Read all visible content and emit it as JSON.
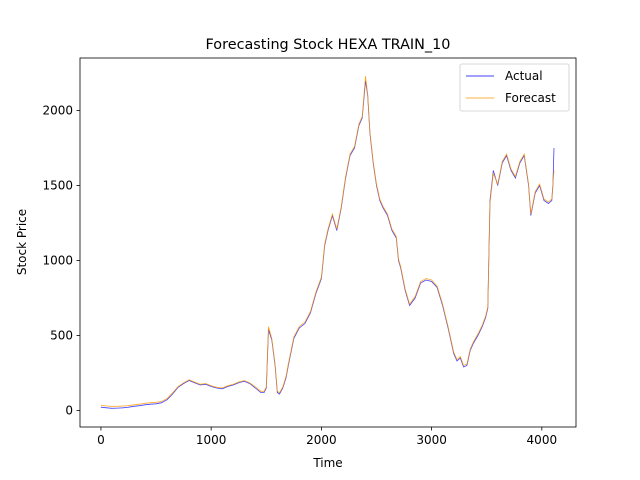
{
  "chart_data": {
    "type": "line",
    "title": "Forecasting Stock HEXA TRAIN_10",
    "xlabel": "Time",
    "ylabel": "Stock Price",
    "xlim": [
      -190,
      4310
    ],
    "ylim": [
      -110,
      2350
    ],
    "xticks": [
      0,
      1000,
      2000,
      3000,
      4000
    ],
    "yticks": [
      0,
      500,
      1000,
      1500,
      2000
    ],
    "grid": false,
    "legend_position": "top-right",
    "series": [
      {
        "name": "Actual",
        "color": "#0000ff",
        "x": [
          0,
          50,
          100,
          150,
          200,
          250,
          300,
          350,
          400,
          450,
          500,
          550,
          600,
          650,
          700,
          750,
          800,
          850,
          900,
          950,
          1000,
          1050,
          1100,
          1150,
          1200,
          1250,
          1300,
          1350,
          1400,
          1450,
          1480,
          1500,
          1520,
          1550,
          1580,
          1600,
          1620,
          1650,
          1680,
          1700,
          1750,
          1800,
          1850,
          1900,
          1950,
          2000,
          2030,
          2060,
          2100,
          2140,
          2180,
          2220,
          2260,
          2300,
          2340,
          2370,
          2400,
          2420,
          2440,
          2470,
          2500,
          2530,
          2560,
          2600,
          2640,
          2680,
          2700,
          2720,
          2760,
          2800,
          2850,
          2900,
          2950,
          3000,
          3050,
          3100,
          3150,
          3200,
          3230,
          3260,
          3290,
          3320,
          3350,
          3380,
          3420,
          3460,
          3490,
          3510,
          3530,
          3560,
          3600,
          3640,
          3680,
          3720,
          3760,
          3800,
          3840,
          3880,
          3900,
          3940,
          3980,
          4020,
          4060,
          4090,
          4100,
          4110
        ],
        "y": [
          22,
          18,
          15,
          16,
          18,
          22,
          28,
          32,
          38,
          42,
          45,
          52,
          72,
          110,
          155,
          180,
          200,
          185,
          170,
          175,
          160,
          150,
          145,
          160,
          170,
          185,
          195,
          180,
          150,
          120,
          120,
          150,
          540,
          470,
          300,
          120,
          110,
          150,
          220,
          300,
          480,
          550,
          580,
          650,
          780,
          880,
          1100,
          1200,
          1300,
          1200,
          1350,
          1550,
          1700,
          1750,
          1900,
          1950,
          2200,
          2100,
          1850,
          1650,
          1500,
          1400,
          1350,
          1300,
          1200,
          1150,
          1000,
          950,
          800,
          700,
          750,
          850,
          870,
          860,
          820,
          700,
          550,
          380,
          330,
          350,
          290,
          300,
          400,
          450,
          500,
          560,
          620,
          680,
          1400,
          1600,
          1500,
          1650,
          1700,
          1600,
          1550,
          1650,
          1700,
          1500,
          1300,
          1450,
          1500,
          1400,
          1380,
          1400,
          1500,
          1750
        ]
      },
      {
        "name": "Forecast",
        "color": "#ff9900",
        "x": [
          0,
          50,
          100,
          150,
          200,
          250,
          300,
          350,
          400,
          450,
          500,
          550,
          600,
          650,
          700,
          750,
          800,
          850,
          900,
          950,
          1000,
          1050,
          1100,
          1150,
          1200,
          1250,
          1300,
          1350,
          1400,
          1450,
          1480,
          1500,
          1520,
          1550,
          1580,
          1600,
          1620,
          1650,
          1680,
          1700,
          1750,
          1800,
          1850,
          1900,
          1950,
          2000,
          2030,
          2060,
          2100,
          2140,
          2180,
          2220,
          2260,
          2300,
          2340,
          2370,
          2400,
          2420,
          2440,
          2470,
          2500,
          2530,
          2560,
          2600,
          2640,
          2680,
          2700,
          2720,
          2760,
          2800,
          2850,
          2900,
          2950,
          3000,
          3050,
          3100,
          3150,
          3200,
          3230,
          3260,
          3290,
          3320,
          3350,
          3380,
          3420,
          3460,
          3490,
          3510,
          3530,
          3560,
          3600,
          3640,
          3680,
          3720,
          3760,
          3800,
          3840,
          3880,
          3900,
          3940,
          3980,
          4020,
          4060,
          4090,
          4100,
          4110
        ],
        "y": [
          35,
          30,
          28,
          28,
          30,
          32,
          38,
          42,
          48,
          52,
          55,
          60,
          80,
          118,
          160,
          185,
          205,
          190,
          175,
          180,
          165,
          155,
          150,
          165,
          175,
          190,
          200,
          185,
          158,
          128,
          128,
          158,
          560,
          480,
          310,
          130,
          118,
          158,
          230,
          310,
          490,
          560,
          590,
          660,
          790,
          890,
          1110,
          1210,
          1310,
          1210,
          1360,
          1560,
          1710,
          1760,
          1910,
          1960,
          2230,
          2110,
          1860,
          1660,
          1510,
          1410,
          1360,
          1310,
          1210,
          1160,
          1010,
          960,
          810,
          710,
          760,
          860,
          880,
          870,
          830,
          710,
          560,
          390,
          340,
          360,
          300,
          310,
          410,
          460,
          510,
          570,
          630,
          690,
          1380,
          1580,
          1510,
          1660,
          1710,
          1610,
          1560,
          1660,
          1710,
          1510,
          1310,
          1460,
          1510,
          1410,
          1390,
          1410,
          1510,
          1600
        ]
      }
    ]
  }
}
